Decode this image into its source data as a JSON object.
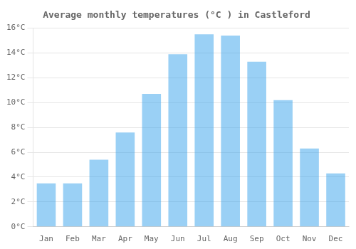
{
  "chart_data": {
    "type": "bar",
    "title": "Average monthly temperatures (°C ) in Castleford",
    "categories": [
      "Jan",
      "Feb",
      "Mar",
      "Apr",
      "May",
      "Jun",
      "Jul",
      "Aug",
      "Sep",
      "Oct",
      "Nov",
      "Dec"
    ],
    "values": [
      3.5,
      3.5,
      5.4,
      7.6,
      10.7,
      13.9,
      15.5,
      15.4,
      13.3,
      10.2,
      6.3,
      4.3
    ],
    "ylim": [
      0,
      16
    ],
    "yticks": [
      {
        "value": 0,
        "label": "0°C"
      },
      {
        "value": 2,
        "label": "2°C"
      },
      {
        "value": 4,
        "label": "4°C"
      },
      {
        "value": 6,
        "label": "6°C"
      },
      {
        "value": 8,
        "label": "8°C"
      },
      {
        "value": 10,
        "label": "10°C"
      },
      {
        "value": 12,
        "label": "12°C"
      },
      {
        "value": 14,
        "label": "14°C"
      },
      {
        "value": 16,
        "label": "16°C"
      }
    ],
    "grid": true
  }
}
